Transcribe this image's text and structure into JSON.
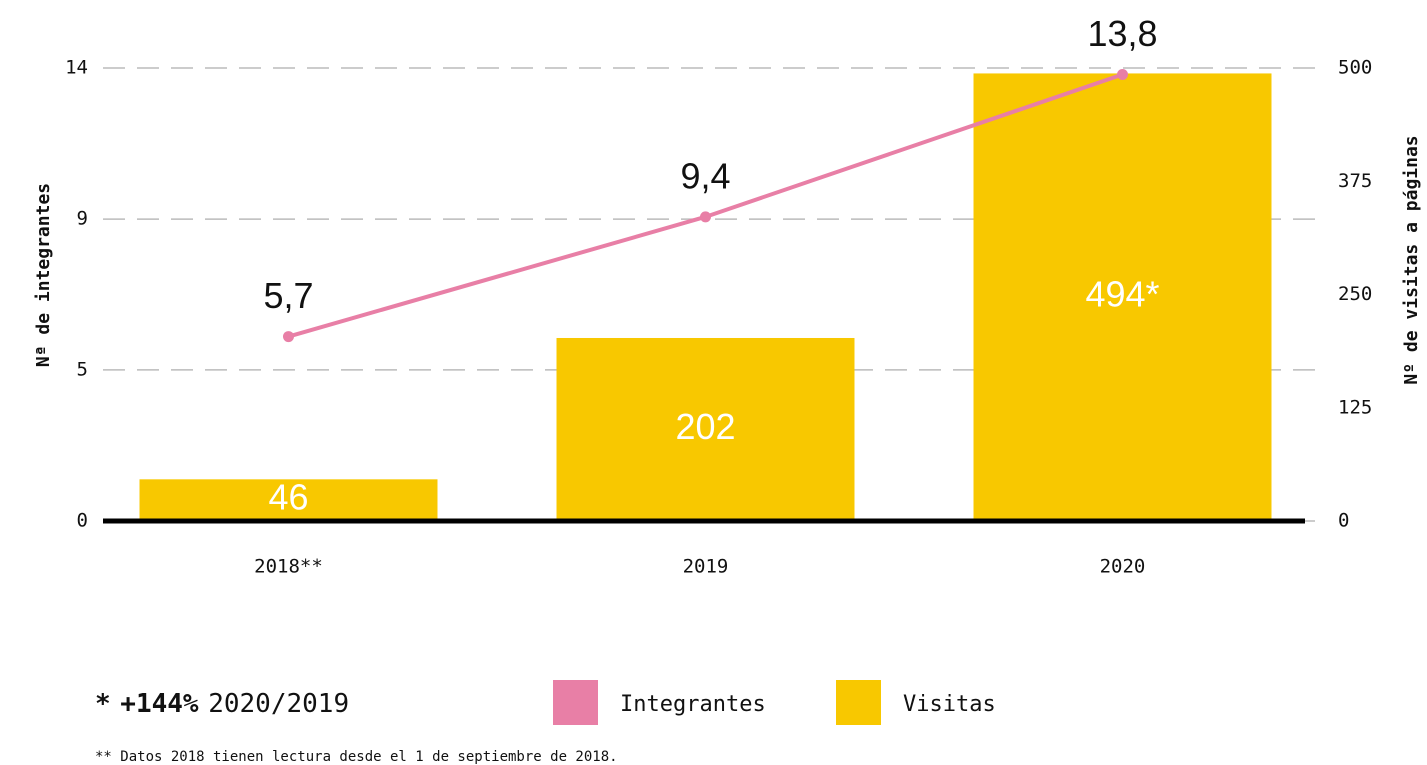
{
  "chart_data": {
    "type": "bar",
    "categories": [
      "2018**",
      "2019",
      "2020"
    ],
    "ylabel": "Nª de integrantes",
    "y2label": "Nº de visitas a páginas",
    "ylim": [
      0,
      14
    ],
    "yticks": [
      0,
      {
        "value": 4.67,
        "label": "5"
      },
      {
        "value": 9.33,
        "label": "9"
      },
      14
    ],
    "y2lim": [
      0,
      500
    ],
    "y2ticks": [
      0,
      125,
      250,
      375,
      500
    ],
    "grid": true,
    "series": [
      {
        "name": "Integrantes",
        "type": "line",
        "color": "#e87fa6",
        "values": [
          5.7,
          9.4,
          13.8
        ],
        "value_labels": [
          "5,7",
          "9,4",
          "13,8"
        ]
      },
      {
        "name": "Visitas",
        "type": "bar",
        "axis": "y2",
        "color": "#f8c800",
        "values": [
          46,
          202,
          494
        ],
        "value_labels": [
          "46",
          "202",
          "494*"
        ]
      }
    ],
    "annotation": {
      "marker": "*",
      "change": "+144%",
      "period": "2020/2019"
    },
    "footnote": "** Datos 2018 tienen lectura desde el 1 de septiembre de 2018."
  }
}
